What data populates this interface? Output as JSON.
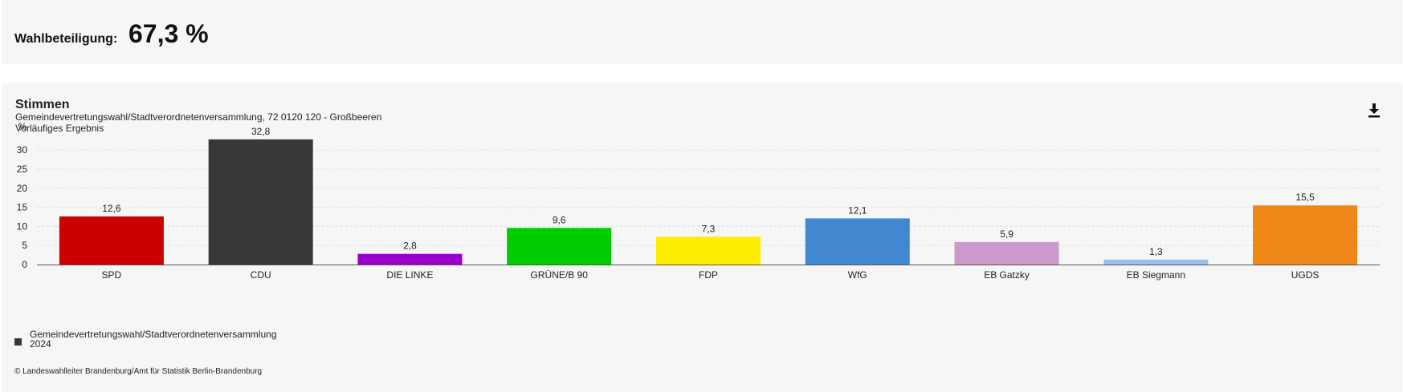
{
  "turnout": {
    "label": "Wahlbeteiligung:",
    "value": "67,3 %"
  },
  "panel": {
    "title": "Stimmen",
    "subtitle": "Gemeindevertretungswahl/Stadtverordnetenversammlung, 72 0120 120 - Großbeeren",
    "status": "Vorläufiges Ergebnis",
    "download_icon": "download-icon",
    "legend_line1": "Gemeindevertretungswahl/Stadtverordnetenversammlung",
    "legend_line2": "2024",
    "copyright": "© Landeswahlleiter Brandenburg/Amt für Statistik Berlin-Brandenburg"
  },
  "chart_data": {
    "type": "bar",
    "title": "Stimmen",
    "ylabel": "%",
    "xlabel": "",
    "ylim": [
      0,
      35
    ],
    "yticks": [
      0,
      5,
      10,
      15,
      20,
      25,
      30
    ],
    "grid": true,
    "legend_position": "bottom-left",
    "categories": [
      "SPD",
      "CDU",
      "DIE LINKE",
      "GRÜNE/B 90",
      "FDP",
      "WfG",
      "EB Gatzky",
      "EB Siegmann",
      "UGDS"
    ],
    "values": [
      12.6,
      32.8,
      2.8,
      9.6,
      7.3,
      12.1,
      5.9,
      1.3,
      15.5
    ],
    "value_labels": [
      "12,6",
      "32,8",
      "2,8",
      "9,6",
      "7,3",
      "12,1",
      "5,9",
      "1,3",
      "15,5"
    ],
    "colors": [
      "#cc0000",
      "#373737",
      "#9900cc",
      "#00cc00",
      "#ffee00",
      "#4188d0",
      "#cc99cc",
      "#99c2e8",
      "#ee8618"
    ],
    "series": [
      {
        "name": "Gemeindevertretungswahl/Stadtverordnetenversammlung 2024",
        "values": [
          12.6,
          32.8,
          2.8,
          9.6,
          7.3,
          12.1,
          5.9,
          1.3,
          15.5
        ]
      }
    ]
  }
}
